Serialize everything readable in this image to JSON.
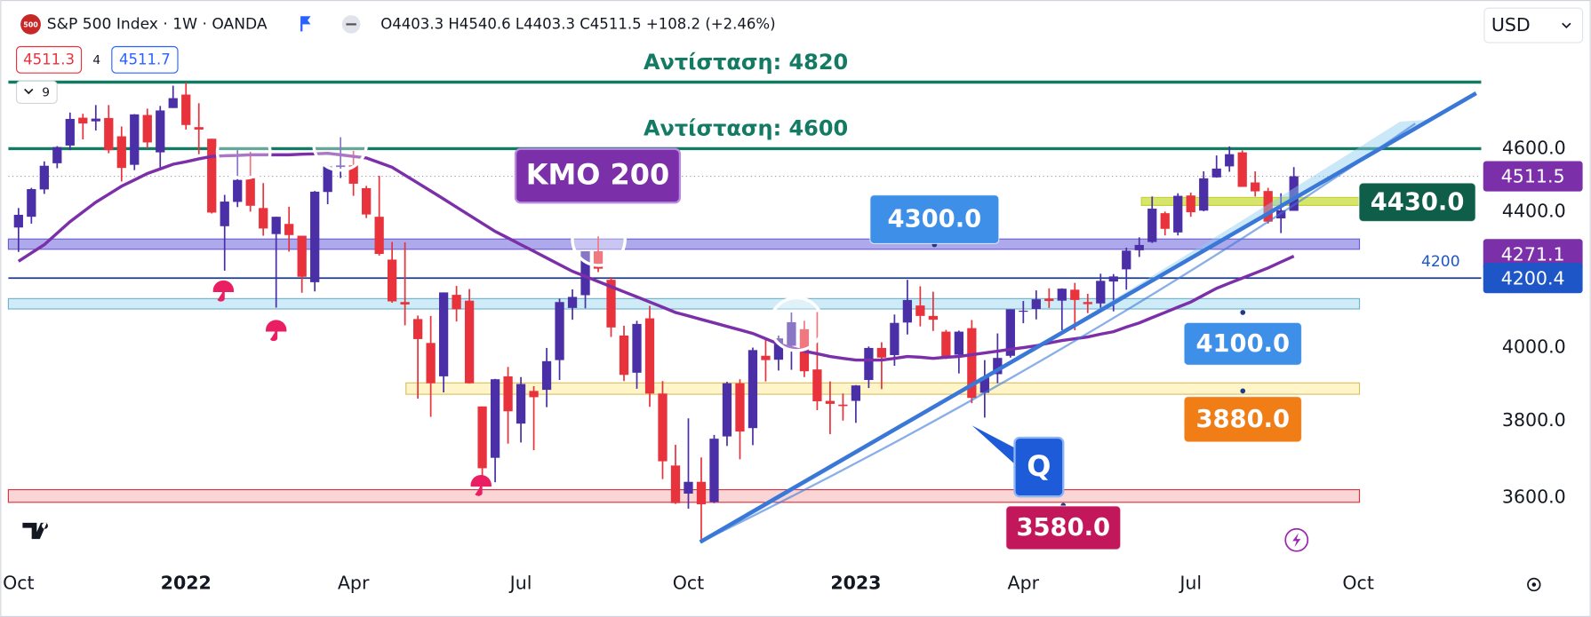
{
  "header": {
    "symbol_icon": "500",
    "ohlc_labels": [
      "O",
      "H",
      "L",
      "C"
    ],
    "change": "+108.2 (+2.46%)",
    "sell": "4511.3",
    "spread": "4",
    "buy": "4511.7",
    "indicators": "9",
    "currency": "USD"
  },
  "chart_data": {
    "type": "candlestick",
    "title": "S&P 500 Index · 1W · OANDA",
    "categories": [
      "Oct",
      null,
      null,
      null,
      null,
      null,
      null,
      null,
      null,
      null,
      null,
      null,
      null,
      "2022",
      null,
      null,
      null,
      null,
      null,
      null,
      null,
      null,
      null,
      null,
      null,
      null,
      "Apr",
      null,
      null,
      null,
      null,
      null,
      null,
      null,
      null,
      null,
      null,
      null,
      null,
      "Jul",
      null,
      null,
      null,
      null,
      null,
      null,
      null,
      null,
      null,
      null,
      null,
      null,
      "Oct",
      null,
      null,
      null,
      null,
      null,
      null,
      null,
      null,
      null,
      null,
      null,
      null,
      "2023",
      null,
      null,
      null,
      null,
      null,
      null,
      null,
      null,
      null,
      null,
      null,
      null,
      "Apr",
      null,
      null,
      null,
      null,
      null,
      null,
      null,
      null,
      null,
      null,
      null,
      null,
      "Jul",
      null,
      null,
      null,
      null,
      null,
      null,
      null,
      null,
      null,
      null,
      null,
      null,
      "Oct",
      null,
      null,
      null,
      null,
      null,
      null,
      null,
      null,
      null
    ],
    "open": [
      4352,
      4385,
      4470,
      4553,
      4610,
      4701,
      4689,
      4700,
      4640,
      4548,
      4710,
      4588,
      4733,
      4778,
      4670,
      4632,
      4356,
      4431,
      4505,
      4412,
      4332,
      4363,
      4327,
      4188,
      4462,
      4541,
      4547,
      4474,
      4385,
      4255,
      4130,
      4081,
      4013,
      3920,
      4151,
      4134,
      3838,
      3702,
      3920,
      3792,
      3880,
      3883,
      3965,
      4113,
      4150,
      4280,
      4195,
      4034,
      3930,
      4083,
      3873,
      3682,
      3610,
      3640,
      3589,
      3758,
      3901,
      3780,
      3977,
      3966,
      4005,
      4052,
      3939,
      3853,
      3843,
      3853,
      3910,
      3999,
      3979,
      4071,
      4120,
      4090,
      4045,
      3980,
      4055,
      3875,
      3926,
      3977,
      4102,
      4110,
      4140,
      4134,
      4166,
      4130,
      4126,
      4190,
      4226,
      4283,
      4308,
      4396,
      4337,
      4451,
      4404,
      4508,
      4543,
      4588,
      4492,
      4465,
      4380,
      4403.3,
      null,
      null,
      null,
      null,
      null,
      null,
      null,
      null,
      null,
      null,
      null,
      null,
      null,
      null
    ],
    "high": [
      4412,
      4475,
      4559,
      4608,
      4718,
      4714,
      4743,
      4743,
      4672,
      4713,
      4731,
      4740,
      4808,
      4818,
      4749,
      4632,
      4453,
      4595,
      4590,
      4490,
      4385,
      4416,
      4327,
      4465,
      4546,
      4637,
      4593,
      4481,
      4513,
      4308,
      4307,
      4091,
      4090,
      4158,
      4177,
      4168,
      3838,
      3913,
      3946,
      3918,
      3893,
      3999,
      4140,
      4167,
      4280,
      4325,
      4203,
      4062,
      4076,
      4119,
      3907,
      3736,
      3806,
      3703,
      3762,
      3905,
      3912,
      4000,
      4028,
      4034,
      4100,
      4076,
      4101,
      3906,
      3873,
      3896,
      4003,
      4015,
      4094,
      4195,
      4176,
      4160,
      4050,
      4048,
      4078,
      3965,
      4040,
      4109,
      4133,
      4164,
      4170,
      4170,
      4186,
      4154,
      4213,
      4212,
      4291,
      4322,
      4448,
      4401,
      4458,
      4460,
      4527,
      4578,
      4607,
      4594,
      4527,
      4475,
      4458,
      4540.6,
      null,
      null,
      null,
      null,
      null,
      null,
      null,
      null,
      null,
      null,
      null,
      null,
      null,
      null
    ],
    "low": [
      4278,
      4364,
      4456,
      4537,
      4595,
      4630,
      4659,
      4585,
      4495,
      4531,
      4600,
      4531,
      4733,
      4662,
      4582,
      4395,
      4222,
      4415,
      4401,
      4327,
      4114,
      4279,
      4157,
      4161,
      4424,
      4506,
      4450,
      4381,
      4267,
      4128,
      4063,
      3859,
      3810,
      3876,
      4074,
      3900,
      3636,
      3639,
      3739,
      3742,
      3722,
      3836,
      3910,
      4079,
      4112,
      4218,
      4030,
      3907,
      3886,
      3837,
      3647,
      3584,
      3572,
      3491,
      3586,
      3733,
      3698,
      3735,
      3906,
      3936,
      3938,
      3918,
      3828,
      3764,
      3800,
      3794,
      3888,
      3885,
      3949,
      4037,
      4060,
      4047,
      3968,
      3928,
      3847,
      3808,
      3901,
      3972,
      4069,
      4080,
      4113,
      4049,
      4049,
      4098,
      4103,
      4103,
      4166,
      4263,
      4305,
      4328,
      4328,
      4385,
      4402,
      4507,
      4526,
      4491,
      4448,
      4364,
      4335,
      4403.3,
      null,
      null,
      null,
      null,
      null,
      null,
      null,
      null,
      null,
      null,
      null,
      null,
      null,
      null
    ],
    "close": [
      4391,
      4471,
      4545,
      4605,
      4697,
      4682,
      4698,
      4595,
      4538,
      4712,
      4620,
      4725,
      4766,
      4677,
      4662,
      4398,
      4432,
      4500,
      4419,
      4349,
      4385,
      4329,
      4204,
      4463,
      4543,
      4546,
      4488,
      4392,
      4272,
      4132,
      4123,
      4024,
      3901,
      4158,
      4109,
      3901,
      3675,
      3912,
      3825,
      3899,
      3863,
      3962,
      4130,
      4145,
      4280,
      4228,
      4057,
      3924,
      4067,
      3873,
      3693,
      3586,
      3640,
      3583,
      3752,
      3901,
      3771,
      3993,
      3965,
      4026,
      4072,
      3934,
      3852,
      3845,
      3839,
      3895,
      3999,
      3972,
      4070,
      4136,
      4090,
      4079,
      3970,
      4045,
      3861,
      3917,
      3971,
      4109,
      4105,
      4138,
      4133,
      4169,
      4136,
      4124,
      4192,
      4205,
      4282,
      4299,
      4410,
      4348,
      4450,
      4399,
      4505,
      4536,
      4582,
      4478,
      4464,
      4370,
      4405,
      4511.5,
      null,
      null,
      null,
      null,
      null,
      null,
      null,
      null,
      null,
      null,
      null,
      null,
      null,
      null
    ],
    "up_color": "#4b2fa6",
    "down_color": "#e8323c",
    "series": [
      {
        "name": "ΚΜΟ 200",
        "color": "#7b2fa8",
        "values": [
          4250,
          4275,
          4300,
          4335,
          4370,
          4400,
          4430,
          4455,
          4480,
          4500,
          4520,
          4535,
          4550,
          4558,
          4567,
          4575,
          4577,
          4578,
          4580,
          4580,
          4580,
          4580,
          4582,
          4583,
          4585,
          4580,
          4575,
          4570,
          4555,
          4540,
          4515,
          4490,
          4465,
          4440,
          4415,
          4390,
          4365,
          4340,
          4320,
          4300,
          4280,
          4260,
          4240,
          4220,
          4205,
          4190,
          4175,
          4160,
          4145,
          4130,
          4115,
          4100,
          4090,
          4080,
          4070,
          4060,
          4050,
          4040,
          4025,
          4010,
          4000,
          3990,
          3983,
          3975,
          3970,
          3965,
          3965,
          3965,
          3970,
          3975,
          3973,
          3970,
          3973,
          3975,
          3980,
          3985,
          3990,
          3995,
          4000,
          4005,
          4013,
          4020,
          4025,
          4030,
          4038,
          4045,
          4058,
          4070,
          4085,
          4100,
          4115,
          4130,
          4150,
          4170,
          4185,
          4200,
          4215,
          4230,
          4248,
          4265,
          null,
          null,
          null,
          null,
          null,
          null,
          null,
          null,
          null,
          null,
          null,
          null,
          null,
          null
        ]
      }
    ],
    "ylim": [
      3440,
      5070
    ],
    "log": true,
    "yticks": [
      {
        "value": 3600,
        "label": "3600.0"
      },
      {
        "value": 3800,
        "label": "3800.0"
      },
      {
        "value": 4000,
        "label": "4000.0"
      },
      {
        "value": 4400,
        "label": "4400.0"
      },
      {
        "value": 4600,
        "label": "4600.0"
      }
    ],
    "grid": false,
    "levels": [
      {
        "value": 4820,
        "label": "Αντίσταση: 4820",
        "color": "#137a63"
      },
      {
        "value": 4600,
        "label": "Αντίσταση: 4600",
        "color": "#137a63"
      }
    ],
    "hline": {
      "value": 4200,
      "color": "#1a3a8a"
    },
    "zones": [
      {
        "range": [
          4286,
          4317
        ],
        "fill": "rgba(120,110,225,0.6)",
        "stroke": "#6a5fd0",
        "tag": {
          "value": 4300,
          "label": "4300.0",
          "color": "#3d8fe8"
        }
      },
      {
        "range": [
          4110,
          4140
        ],
        "fill": "rgba(180,225,242,0.65)",
        "stroke": "#6fb3cc",
        "tag": {
          "value": 4100,
          "label": "4100.0",
          "color": "#3d8fe8"
        }
      },
      {
        "range": [
          3871,
          3902
        ],
        "fill": "rgba(255,240,170,0.65)",
        "stroke": "#d8c060",
        "tag": {
          "value": 3880,
          "label": "3880.0",
          "color": "#f07d16"
        }
      },
      {
        "range": [
          3588,
          3620
        ],
        "fill": "rgba(248,190,190,0.65)",
        "stroke": "#d9343c",
        "tag": {
          "value": 3580,
          "label": "3580.0",
          "color": "#c2185b"
        }
      },
      {
        "range": [
          4420,
          4445
        ],
        "fill": "rgba(200,220,60,0.75)",
        "stroke": "#c8d030",
        "tag": {
          "value": 4430,
          "label": "4430.0",
          "color": "#0f5e4a"
        }
      }
    ],
    "price_tags": [
      {
        "value": 4271.1,
        "color": "#7b2fa8"
      },
      {
        "value": 4200.4,
        "color": "#1e56c8"
      }
    ],
    "last_price_color": "#7b2fa8",
    "annotation": "Q"
  }
}
